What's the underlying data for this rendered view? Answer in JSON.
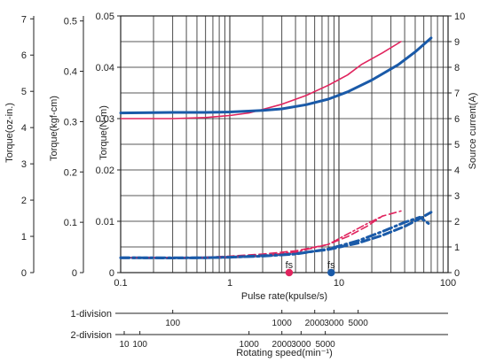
{
  "chart_data": {
    "type": "line",
    "x_scale": "log",
    "xlim": [
      0.1,
      100
    ],
    "x_ticks": [
      0.1,
      1,
      10,
      100
    ],
    "x_tick_labels": [
      "0.1",
      "1",
      "10",
      "100"
    ],
    "xlabel": "Pulse rate(kpulse/s)",
    "grid": true,
    "y_axes": [
      {
        "id": "torque_oz",
        "label": "Torque(oz-in.)",
        "lim": [
          0,
          7.08
        ],
        "ticks": [
          0,
          1,
          2,
          3,
          4,
          5,
          6,
          7
        ],
        "tick_labels": [
          "0",
          "1",
          "2",
          "3",
          "4",
          "5",
          "6",
          "7"
        ]
      },
      {
        "id": "torque_kgf",
        "label": "Torque(kgf-cm)",
        "lim": [
          0,
          0.51
        ],
        "ticks": [
          0,
          0.1,
          0.2,
          0.3,
          0.4,
          0.5
        ],
        "tick_labels": [
          "0",
          "0.1",
          "0.2",
          "0.3",
          "0.4",
          "0.5"
        ]
      },
      {
        "id": "torque_nm",
        "label": "Torque(N-m)",
        "lim": [
          0,
          0.05
        ],
        "ticks": [
          0,
          0.01,
          0.02,
          0.03,
          0.04,
          0.05
        ],
        "tick_labels": [
          "0",
          "0.01",
          "0.02",
          "0.03",
          "0.04",
          "0.05"
        ]
      },
      {
        "id": "current",
        "label": "Source current(A)",
        "lim": [
          0,
          10
        ],
        "ticks": [
          0,
          1,
          2,
          3,
          4,
          5,
          6,
          7,
          8,
          9,
          10
        ],
        "tick_labels": [
          "0",
          "1",
          "2",
          "3",
          "4",
          "5",
          "6",
          "7",
          "8",
          "9",
          "10"
        ]
      }
    ],
    "series": [
      {
        "axis": "torque_nm",
        "style": "solid",
        "color": "#e0245e",
        "x": [
          0.1,
          0.3,
          0.6,
          1,
          1.5,
          2,
          3,
          5,
          8,
          12,
          16,
          25,
          37
        ],
        "y": [
          0.03,
          0.03,
          0.0302,
          0.0306,
          0.0311,
          0.0318,
          0.0328,
          0.0345,
          0.0365,
          0.0385,
          0.0405,
          0.0428,
          0.045
        ]
      },
      {
        "axis": "torque_nm",
        "style": "solid",
        "color": "#1a5aa8",
        "x": [
          0.1,
          0.3,
          0.6,
          1,
          2,
          3,
          5,
          8,
          12,
          20,
          35,
          50,
          70
        ],
        "y": [
          0.0311,
          0.0312,
          0.0312,
          0.0313,
          0.0316,
          0.0319,
          0.0327,
          0.0338,
          0.0352,
          0.0375,
          0.0405,
          0.043,
          0.0457
        ]
      },
      {
        "axis": "current",
        "style": "dashed",
        "color": "#e0245e",
        "x": [
          0.1,
          0.3,
          0.6,
          1,
          2,
          4,
          8,
          12,
          18,
          25,
          37
        ],
        "y": [
          0.58,
          0.58,
          0.6,
          0.64,
          0.72,
          0.85,
          1.1,
          1.4,
          1.8,
          2.2,
          2.4
        ]
      },
      {
        "axis": "current",
        "style": "dashed",
        "color": "#1a5aa8",
        "x": [
          0.1,
          0.3,
          0.6,
          1,
          2,
          4,
          8,
          15,
          25,
          40,
          55,
          70
        ],
        "y": [
          0.58,
          0.57,
          0.58,
          0.6,
          0.66,
          0.74,
          0.9,
          1.15,
          1.45,
          1.8,
          2.1,
          2.35
        ]
      },
      {
        "axis": "torque_nm",
        "style": "dashdot",
        "color": "#e0245e",
        "x": [
          0.1,
          0.3,
          0.6,
          1,
          2,
          4,
          8,
          12,
          18,
          25
        ],
        "y": [
          0.0029,
          0.0029,
          0.0029,
          0.003,
          0.0033,
          0.004,
          0.0055,
          0.0075,
          0.0095,
          0.011
        ]
      },
      {
        "axis": "torque_nm",
        "style": "dashdot",
        "color": "#1a5aa8",
        "x": [
          0.1,
          0.3,
          0.6,
          1,
          2,
          4,
          8,
          15,
          25,
          40,
          55,
          70
        ],
        "y": [
          0.0029,
          0.0029,
          0.0029,
          0.003,
          0.0032,
          0.0036,
          0.0046,
          0.0062,
          0.008,
          0.0098,
          0.0108,
          0.0092
        ]
      }
    ],
    "markers": [
      {
        "label": "fs",
        "x": 3.5,
        "color": "#e0245e"
      },
      {
        "label": "fs",
        "x": 8.5,
        "color": "#1a5aa8"
      }
    ],
    "secondary_x_axes": [
      {
        "name": "1-division",
        "labels": [
          "100",
          "1000",
          "2000",
          "3000",
          "5000"
        ],
        "values": [
          100,
          1000,
          2000,
          3000,
          5000
        ],
        "min_scale_factor": 0.3
      },
      {
        "name": "2-division",
        "labels": [
          "10",
          "100",
          "1000",
          "2000",
          "3000",
          "5000"
        ],
        "values": [
          10,
          100,
          1000,
          2000,
          3000,
          5000
        ],
        "min_scale_factor": 0.15
      }
    ],
    "secondary_xlabel": "Rotating speed(min⁻¹)"
  }
}
